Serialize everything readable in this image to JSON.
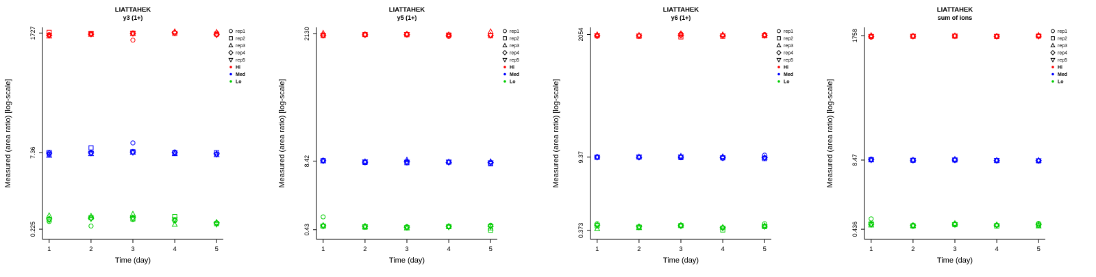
{
  "page": {
    "background": "#ffffff"
  },
  "legend": {
    "reps": [
      {
        "label": "rep1",
        "symbol": "circle"
      },
      {
        "label": "rep2",
        "symbol": "square"
      },
      {
        "label": "rep3",
        "symbol": "triangle-up"
      },
      {
        "label": "rep4",
        "symbol": "diamond"
      },
      {
        "label": "rep5",
        "symbol": "triangle-down"
      }
    ],
    "levels": [
      {
        "label": "Hi",
        "color": "#FF0000"
      },
      {
        "label": "Med",
        "color": "#0000FF"
      },
      {
        "label": "Lo",
        "color": "#00CC00"
      }
    ],
    "position": "right"
  },
  "chart_data": [
    {
      "type": "scatter",
      "title": "LIATTAHEK",
      "subtitle": "y3 (1+)",
      "xlabel": "Time (day)",
      "ylabel": "Measured (area ratio) [log-scale]",
      "x_ticks": [
        1,
        2,
        3,
        4,
        5
      ],
      "y_tick_labels": [
        "0.225",
        "7.36",
        "1727"
      ],
      "y_tick_values": [
        0.225,
        7.36,
        1727
      ],
      "y_scale": "log10",
      "ylog_range": [
        -0.85,
        3.35
      ],
      "grid": false,
      "series": {
        "Hi": {
          "rep1": [
            1600,
            1680,
            1250,
            1750,
            1620
          ],
          "rep2": [
            1780,
            1700,
            1720,
            1700,
            1650
          ],
          "rep3": [
            1500,
            1620,
            1680,
            1850,
            1800
          ],
          "rep4": [
            1550,
            1640,
            1700,
            1760,
            1600
          ],
          "rep5": [
            1570,
            1660,
            1690,
            1720,
            1580
          ]
        },
        "Med": {
          "rep1": [
            6.8,
            7.4,
            11.5,
            7.6,
            6.9
          ],
          "rep2": [
            7.5,
            9.2,
            7.7,
            7.2,
            7.4
          ],
          "rep3": [
            6.5,
            7.0,
            7.5,
            7.0,
            6.7
          ],
          "rep4": [
            7.2,
            7.3,
            7.6,
            7.4,
            7.0
          ],
          "rep5": [
            7.0,
            7.2,
            7.4,
            7.3,
            6.8
          ]
        },
        "Lo": {
          "rep1": [
            0.32,
            0.26,
            0.35,
            0.33,
            0.3
          ],
          "rep2": [
            0.35,
            0.38,
            0.36,
            0.4,
            0.29
          ],
          "rep3": [
            0.42,
            0.41,
            0.45,
            0.28,
            0.31
          ],
          "rep4": [
            0.36,
            0.37,
            0.38,
            0.34,
            0.3
          ],
          "rep5": [
            0.34,
            0.36,
            0.37,
            0.35,
            0.28
          ]
        }
      }
    },
    {
      "type": "scatter",
      "title": "LIATTAHEK",
      "subtitle": "y5 (1+)",
      "xlabel": "Time (day)",
      "ylabel": "Measured (area ratio) [log-scale]",
      "x_ticks": [
        1,
        2,
        3,
        4,
        5
      ],
      "y_tick_labels": [
        "0.43",
        "8.42",
        "2130"
      ],
      "y_tick_values": [
        0.43,
        8.42,
        2130
      ],
      "y_scale": "log10",
      "ylog_range": [
        -0.55,
        3.45
      ],
      "grid": false,
      "series": {
        "Hi": {
          "rep1": [
            1950,
            2050,
            2100,
            1900,
            2000
          ],
          "rep2": [
            1980,
            2060,
            2050,
            2020,
            1960
          ],
          "rep3": [
            2200,
            2080,
            2120,
            2060,
            2350
          ],
          "rep4": [
            2000,
            2040,
            2060,
            2010,
            2000
          ],
          "rep5": [
            1990,
            2030,
            2070,
            2000,
            1980
          ]
        },
        "Med": {
          "rep1": [
            8.8,
            7.9,
            7.8,
            8.0,
            7.6
          ],
          "rep2": [
            8.6,
            8.0,
            7.9,
            8.1,
            7.5
          ],
          "rep3": [
            8.5,
            8.3,
            8.9,
            8.2,
            8.3
          ],
          "rep4": [
            8.6,
            8.1,
            8.2,
            8.0,
            8.0
          ],
          "rep5": [
            8.5,
            8.2,
            8.1,
            8.1,
            7.9
          ]
        },
        "Lo": {
          "rep1": [
            0.75,
            0.5,
            0.49,
            0.5,
            0.52
          ],
          "rep2": [
            0.5,
            0.48,
            0.47,
            0.49,
            0.42
          ],
          "rep3": [
            0.52,
            0.49,
            0.46,
            0.5,
            0.46
          ],
          "rep4": [
            0.51,
            0.5,
            0.48,
            0.49,
            0.5
          ],
          "rep5": [
            0.5,
            0.49,
            0.47,
            0.48,
            0.49
          ]
        }
      }
    },
    {
      "type": "scatter",
      "title": "LIATTAHEK",
      "subtitle": "y6 (1+)",
      "xlabel": "Time (day)",
      "ylabel": "Measured (area ratio) [log-scale]",
      "x_ticks": [
        1,
        2,
        3,
        4,
        5
      ],
      "y_tick_labels": [
        "0.373",
        "9.37",
        "2054"
      ],
      "y_tick_values": [
        0.373,
        9.37,
        2054
      ],
      "y_scale": "log10",
      "ylog_range": [
        -0.6,
        3.45
      ],
      "grid": false,
      "series": {
        "Hi": {
          "rep1": [
            1900,
            1950,
            2100,
            1980,
            2050
          ],
          "rep2": [
            1950,
            1900,
            1850,
            1900,
            1950
          ],
          "rep3": [
            2060,
            2000,
            2150,
            2050,
            2000
          ],
          "rep4": [
            1980,
            1960,
            2000,
            1970,
            1990
          ],
          "rep5": [
            1970,
            1940,
            1990,
            1950,
            1960
          ]
        },
        "Med": {
          "rep1": [
            9.5,
            9.2,
            9.3,
            8.9,
            10.2
          ],
          "rep2": [
            9.3,
            9.4,
            9.2,
            9.1,
            8.8
          ],
          "rep3": [
            9.4,
            9.5,
            9.8,
            9.6,
            9.2
          ],
          "rep4": [
            9.4,
            9.3,
            9.4,
            9.2,
            9.1
          ],
          "rep5": [
            9.3,
            9.4,
            9.5,
            9.0,
            9.0
          ]
        },
        "Lo": {
          "rep1": [
            0.5,
            0.44,
            0.47,
            0.42,
            0.5
          ],
          "rep2": [
            0.46,
            0.43,
            0.46,
            0.38,
            0.44
          ],
          "rep3": [
            0.4,
            0.42,
            0.47,
            0.43,
            0.46
          ],
          "rep4": [
            0.47,
            0.44,
            0.46,
            0.42,
            0.45
          ],
          "rep5": [
            0.46,
            0.43,
            0.45,
            0.41,
            0.44
          ]
        }
      }
    },
    {
      "type": "scatter",
      "title": "LIATTAHEK",
      "subtitle": "sum of ions",
      "xlabel": "Time (day)",
      "ylabel": "Measured (area ratio) [log-scale]",
      "x_ticks": [
        1,
        2,
        3,
        4,
        5
      ],
      "y_tick_labels": [
        "0.436",
        "8.47",
        "1758"
      ],
      "y_tick_values": [
        0.436,
        8.47,
        1758
      ],
      "y_scale": "log10",
      "ylog_range": [
        -0.55,
        3.4
      ],
      "grid": false,
      "series": {
        "Hi": {
          "rep1": [
            1650,
            1720,
            1730,
            1700,
            1760
          ],
          "rep2": [
            1700,
            1710,
            1720,
            1700,
            1730
          ],
          "rep3": [
            1780,
            1740,
            1760,
            1730,
            1800
          ],
          "rep4": [
            1700,
            1720,
            1740,
            1710,
            1720
          ],
          "rep5": [
            1690,
            1715,
            1735,
            1705,
            1710
          ]
        },
        "Med": {
          "rep1": [
            8.8,
            8.3,
            8.4,
            8.2,
            8.1
          ],
          "rep2": [
            8.6,
            8.4,
            8.5,
            8.3,
            8.2
          ],
          "rep3": [
            8.5,
            8.5,
            8.8,
            8.4,
            8.4
          ],
          "rep4": [
            8.6,
            8.4,
            8.5,
            8.3,
            8.3
          ],
          "rep5": [
            8.5,
            8.4,
            8.5,
            8.35,
            8.25
          ]
        },
        "Lo": {
          "rep1": [
            0.68,
            0.52,
            0.55,
            0.52,
            0.56
          ],
          "rep2": [
            0.55,
            0.5,
            0.53,
            0.5,
            0.52
          ],
          "rep3": [
            0.52,
            0.51,
            0.56,
            0.53,
            0.5
          ],
          "rep4": [
            0.54,
            0.51,
            0.54,
            0.52,
            0.53
          ],
          "rep5": [
            0.53,
            0.5,
            0.53,
            0.51,
            0.52
          ]
        }
      }
    }
  ]
}
